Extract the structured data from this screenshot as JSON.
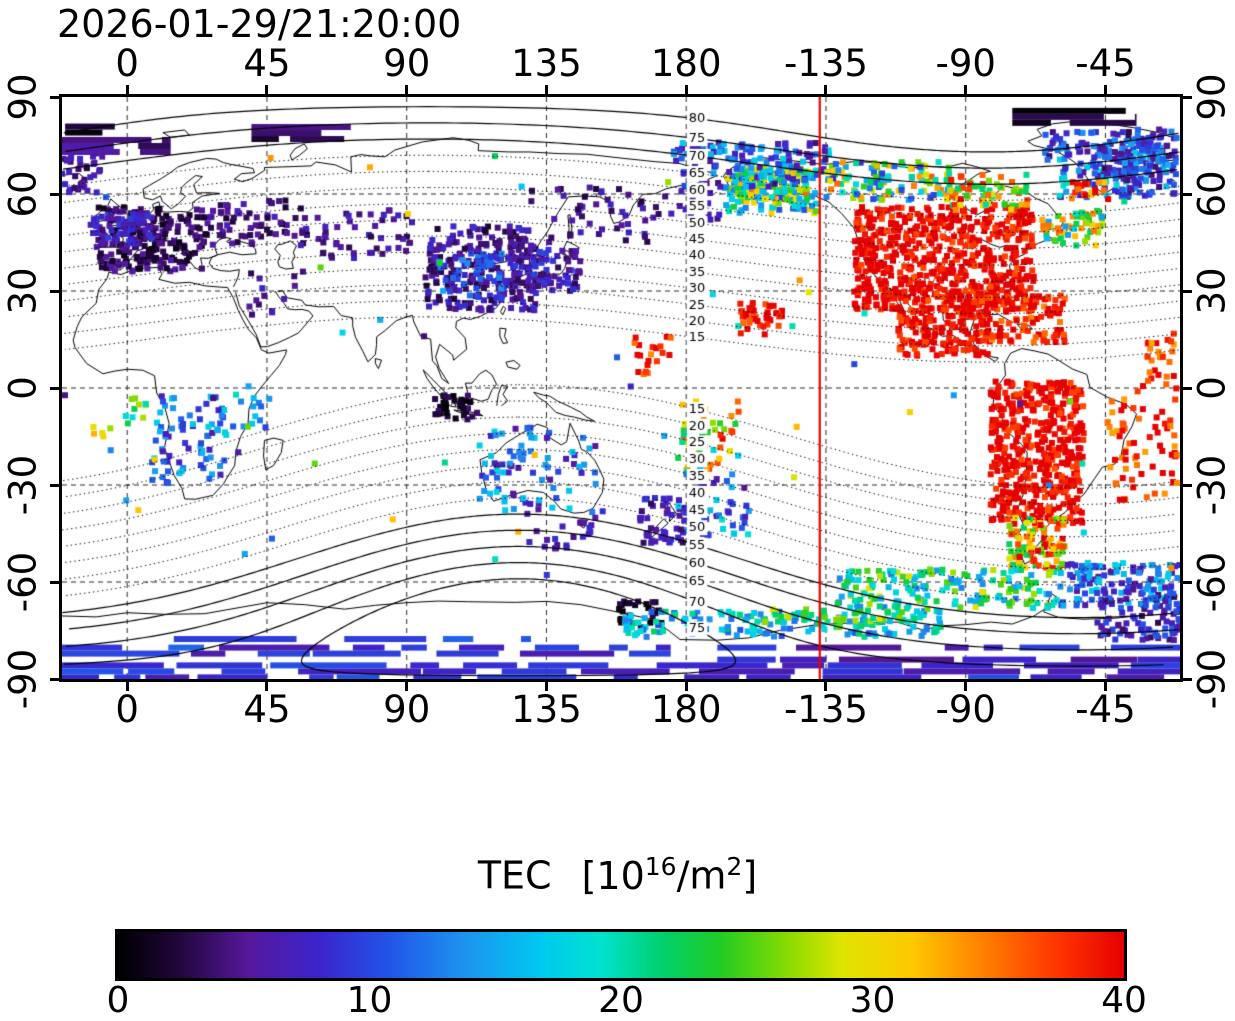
{
  "title": "2026-01-29/21:20:00",
  "axes": {
    "x_ticks": [
      0,
      45,
      90,
      135,
      180,
      -135,
      -90,
      -45
    ],
    "y_ticks": [
      90,
      60,
      30,
      0,
      -30,
      -60,
      -90
    ],
    "lon_range": [
      -21,
      339
    ],
    "lat_range": [
      -90,
      90
    ],
    "grid_lat_lines": [
      -60,
      -30,
      0,
      30,
      60
    ]
  },
  "colors": {
    "noon_line": "#ee0000",
    "coast": "#000000",
    "grid": "#2a2a2a",
    "contour": "#000000",
    "frame": "#000000",
    "background": "#ffffff"
  },
  "colorbar": {
    "title_parts": {
      "word": "TEC",
      "open": "[10",
      "sup1": "16",
      "mid": "/m",
      "sup2": "2",
      "close": "]"
    },
    "ticks": [
      0,
      10,
      20,
      30,
      40
    ],
    "range": [
      0,
      40
    ],
    "gradient_stops": [
      [
        0,
        "#000000"
      ],
      [
        0.06,
        "#20063b"
      ],
      [
        0.13,
        "#56189c"
      ],
      [
        0.2,
        "#3b24cc"
      ],
      [
        0.27,
        "#2155e8"
      ],
      [
        0.34,
        "#1e90ee"
      ],
      [
        0.42,
        "#00c8f0"
      ],
      [
        0.48,
        "#00e2cf"
      ],
      [
        0.54,
        "#00d06e"
      ],
      [
        0.6,
        "#22cc22"
      ],
      [
        0.67,
        "#8fdc00"
      ],
      [
        0.72,
        "#e0e400"
      ],
      [
        0.79,
        "#ffc800"
      ],
      [
        0.86,
        "#ff8000"
      ],
      [
        0.93,
        "#ff3800"
      ],
      [
        1,
        "#e60000"
      ]
    ]
  },
  "chart_data": {
    "type": "heatmap",
    "projection": "equirectangular",
    "timestamp": "2026-01-29/21:20:00",
    "quantity": "TEC",
    "units": "10^16/m^2",
    "value_range": [
      0,
      40
    ],
    "noon_meridian_lon": -137,
    "magnetic_latitude_contours": {
      "interval": 5,
      "label_lon": 183.5,
      "levels_north": [
        15,
        20,
        25,
        30,
        35,
        40,
        45,
        50,
        55,
        60,
        65,
        70,
        75,
        80
      ],
      "levels_south": [
        15,
        20,
        25,
        30,
        35,
        40,
        45,
        50,
        55,
        60,
        65,
        70,
        75
      ],
      "north_pole": {
        "lat": 83,
        "lon": 277
      },
      "south_pole": {
        "lat": -74,
        "lon": 126
      }
    },
    "tec_patches": [
      {
        "name": "north-america-core",
        "lon": [
          -126,
          -68
        ],
        "lat": [
          24,
          56
        ],
        "n": 650,
        "tec": [
          36,
          45
        ]
      },
      {
        "name": "mexico-central-america",
        "lon": [
          -112,
          -82
        ],
        "lat": [
          10,
          25
        ],
        "n": 160,
        "tec": [
          36,
          44
        ]
      },
      {
        "name": "caribbean",
        "lon": [
          -85,
          -58
        ],
        "lat": [
          14,
          29
        ],
        "n": 110,
        "tec": [
          34,
          44
        ]
      },
      {
        "name": "newfoundland-mixed",
        "lon": [
          -66,
          -46
        ],
        "lat": [
          44,
          55
        ],
        "n": 60,
        "tec": [
          14,
          36
        ]
      },
      {
        "name": "alaska-transition",
        "lon": [
          -168,
          -138
        ],
        "lat": [
          54,
          68
        ],
        "n": 130,
        "tec": [
          8,
          32
        ]
      },
      {
        "name": "alaska-aurora-bright",
        "lon": [
          -164,
          -140
        ],
        "lat": [
          58,
          67
        ],
        "n": 80,
        "tec": [
          15,
          36
        ]
      },
      {
        "name": "chukchi-mixed",
        "lon": [
          176,
          226
        ],
        "lat": [
          62,
          76
        ],
        "n": 150,
        "tec": [
          4,
          18
        ]
      },
      {
        "name": "arctic-canada-mixed",
        "lon": [
          -135,
          -95
        ],
        "lat": [
          58,
          70
        ],
        "n": 110,
        "tec": [
          8,
          36
        ]
      },
      {
        "name": "hudson-north-red",
        "lon": [
          -95,
          -70
        ],
        "lat": [
          55,
          66
        ],
        "n": 70,
        "tec": [
          20,
          40
        ]
      },
      {
        "name": "greenland-coast",
        "lon": [
          -60,
          -30
        ],
        "lat": [
          59,
          76
        ],
        "n": 90,
        "tec": [
          4,
          20
        ]
      },
      {
        "name": "greenland-red-specks",
        "lon": [
          -56,
          -44
        ],
        "lat": [
          58,
          64
        ],
        "n": 20,
        "tec": [
          30,
          42
        ]
      },
      {
        "name": "north-atlantic-corner",
        "lon": [
          -42,
          -22
        ],
        "lat": [
          60,
          78
        ],
        "n": 90,
        "tec": [
          3,
          16
        ]
      },
      {
        "name": "arctic-corner-mixed",
        "lon": [
          -65,
          -22
        ],
        "lat": [
          66,
          80
        ],
        "n": 110,
        "tec": [
          3,
          16
        ]
      },
      {
        "name": "iceland-sparse",
        "lon": [
          -21,
          -8
        ],
        "lat": [
          60,
          74
        ],
        "n": 40,
        "tec": [
          2,
          8
        ]
      },
      {
        "name": "south-america",
        "lon": [
          -82,
          -52
        ],
        "lat": [
          -42,
          2
        ],
        "n": 480,
        "tec": [
          36,
          45
        ]
      },
      {
        "name": "patagonia-mixed",
        "lon": [
          -76,
          -58
        ],
        "lat": [
          -56,
          -40
        ],
        "n": 100,
        "tec": [
          22,
          42
        ]
      },
      {
        "name": "south-atlantic-edge",
        "lon": [
          -45,
          -22
        ],
        "lat": [
          -35,
          2
        ],
        "n": 70,
        "tec": [
          33,
          44
        ]
      },
      {
        "name": "equatorial-atlantic-edge",
        "lon": [
          -32,
          -22
        ],
        "lat": [
          2,
          18
        ],
        "n": 25,
        "tec": [
          32,
          42
        ]
      },
      {
        "name": "europe-dark",
        "lon": [
          -10,
          26
        ],
        "lat": [
          36,
          56
        ],
        "n": 220,
        "tec": [
          1,
          6
        ]
      },
      {
        "name": "europe-blue-fringe",
        "lon": [
          -12,
          8
        ],
        "lat": [
          44,
          54
        ],
        "n": 60,
        "tec": [
          5,
          10
        ]
      },
      {
        "name": "west-russia",
        "lon": [
          26,
          62
        ],
        "lat": [
          44,
          58
        ],
        "n": 70,
        "tec": [
          2,
          7
        ]
      },
      {
        "name": "central-asia",
        "lon": [
          62,
          92
        ],
        "lat": [
          40,
          55
        ],
        "n": 45,
        "tec": [
          3,
          8
        ]
      },
      {
        "name": "east-asia-dark",
        "lon": [
          96,
          132
        ],
        "lat": [
          24,
          50
        ],
        "n": 260,
        "tec": [
          2,
          9
        ]
      },
      {
        "name": "china-cyan-bits",
        "lon": [
          100,
          122
        ],
        "lat": [
          28,
          42
        ],
        "n": 45,
        "tec": [
          8,
          15
        ]
      },
      {
        "name": "japan-korea",
        "lon": [
          124,
          146
        ],
        "lat": [
          30,
          43
        ],
        "n": 75,
        "tec": [
          3,
          10
        ]
      },
      {
        "name": "ne-asia-sparse",
        "lon": [
          130,
          168
        ],
        "lat": [
          45,
          62
        ],
        "n": 45,
        "tec": [
          2,
          8
        ]
      },
      {
        "name": "middle-east-sparse",
        "lon": [
          38,
          58
        ],
        "lat": [
          22,
          36
        ],
        "n": 14,
        "tec": [
          3,
          8
        ]
      },
      {
        "name": "pacific-equator-red",
        "lon": [
          163,
          176
        ],
        "lat": [
          4,
          16
        ],
        "n": 20,
        "tec": [
          33,
          42
        ]
      },
      {
        "name": "hawaii-red",
        "lon": [
          -163,
          -149
        ],
        "lat": [
          16,
          27
        ],
        "n": 40,
        "tec": [
          35,
          44
        ]
      },
      {
        "name": "dateline-warm",
        "lon": [
          177,
          197
        ],
        "lat": [
          -26,
          -4
        ],
        "n": 50,
        "tec": [
          14,
          40
        ]
      },
      {
        "name": "dateline-cool",
        "lon": [
          179,
          201
        ],
        "lat": [
          -46,
          -26
        ],
        "n": 45,
        "tec": [
          5,
          20
        ]
      },
      {
        "name": "indonesia-dark",
        "lon": [
          99,
          113
        ],
        "lat": [
          -10,
          -2
        ],
        "n": 35,
        "tec": [
          0,
          4
        ]
      },
      {
        "name": "australia-scatter",
        "lon": [
          113,
          154
        ],
        "lat": [
          -39,
          -12
        ],
        "n": 85,
        "tec": [
          5,
          18
        ]
      },
      {
        "name": "south-of-australia",
        "lon": [
          128,
          152
        ],
        "lat": [
          -50,
          -40
        ],
        "n": 20,
        "tec": [
          4,
          9
        ]
      },
      {
        "name": "new-zealand-blue",
        "lon": [
          165,
          180
        ],
        "lat": [
          -48,
          -34
        ],
        "n": 45,
        "tec": [
          3,
          9
        ]
      },
      {
        "name": "africa-south-scatter",
        "lon": [
          8,
          32
        ],
        "lat": [
          -30,
          -2
        ],
        "n": 75,
        "tec": [
          6,
          18
        ]
      },
      {
        "name": "gulf-of-guinea-warm",
        "lon": [
          -2,
          9
        ],
        "lat": [
          -11,
          -3
        ],
        "n": 10,
        "tec": [
          18,
          28
        ]
      },
      {
        "name": "angola-orange-specks",
        "lon": [
          -11,
          -5
        ],
        "lat": [
          -15,
          -9
        ],
        "n": 5,
        "tec": [
          27,
          33
        ]
      },
      {
        "name": "east-africa-green",
        "lon": [
          33,
          47
        ],
        "lat": [
          -13,
          1
        ],
        "n": 14,
        "tec": [
          9,
          20
        ]
      },
      {
        "name": "bering-sparse",
        "lon": [
          168,
          192
        ],
        "lat": [
          52,
          62
        ],
        "n": 16,
        "tec": [
          3,
          8
        ]
      },
      {
        "name": "southern-band-warm",
        "lon": [
          -132,
          -60
        ],
        "lat": [
          -68,
          -56
        ],
        "n": 170,
        "tec": [
          12,
          30
        ]
      },
      {
        "name": "southern-band-cool",
        "lon": [
          -60,
          -21
        ],
        "lat": [
          -68,
          -54
        ],
        "n": 130,
        "tec": [
          5,
          18
        ]
      },
      {
        "name": "bottom-right-blue",
        "lon": [
          -48,
          -21
        ],
        "lat": [
          -78,
          -62
        ],
        "n": 90,
        "tec": [
          3,
          12
        ]
      },
      {
        "name": "ross-sea-dark",
        "lon": [
          158,
          173
        ],
        "lat": [
          -74,
          -66
        ],
        "n": 28,
        "tec": [
          0,
          3
        ]
      },
      {
        "name": "antarctic-cyan-band",
        "lon": [
          160,
          262
        ],
        "lat": [
          -77,
          -69
        ],
        "n": 160,
        "tec": [
          10,
          22
        ]
      },
      {
        "name": "antarctic-yellow-bits",
        "lon": [
          205,
          258
        ],
        "lat": [
          -74,
          -68
        ],
        "n": 40,
        "tec": [
          20,
          30
        ]
      },
      {
        "name": "stray-singles",
        "lon": [
          -21,
          339
        ],
        "lat": [
          -60,
          76
        ],
        "n": 55,
        "tec": [
          2,
          34
        ]
      }
    ],
    "tec_bands": [
      {
        "name": "antarctic-stripe-1",
        "lon": [
          -21,
          339
        ],
        "lat": [
          -89.5,
          -84
        ],
        "tec": [
          6,
          11
        ]
      },
      {
        "name": "antarctic-stripe-2",
        "lon": [
          -21,
          175
        ],
        "lat": [
          -84,
          -79.5
        ],
        "tec": [
          6,
          12
        ]
      },
      {
        "name": "antarctic-stripe-3",
        "lon": [
          190,
          339
        ],
        "lat": [
          -84,
          -79.5
        ],
        "tec": [
          5,
          10
        ]
      },
      {
        "name": "antarctic-stripe-4",
        "lon": [
          15,
          130
        ],
        "lat": [
          -79.5,
          -76
        ],
        "tec": [
          7,
          12
        ]
      },
      {
        "name": "arctic-stripe-left",
        "lon": [
          -21,
          14
        ],
        "lat": [
          73,
          77
        ],
        "tec": [
          2,
          6
        ]
      },
      {
        "name": "arctic-dark-top-left",
        "lon": [
          -20,
          -4
        ],
        "lat": [
          79,
          82
        ],
        "tec": [
          0,
          3
        ]
      },
      {
        "name": "arctic-stripe-mid",
        "lon": [
          40,
          72
        ],
        "lat": [
          77,
          81
        ],
        "tec": [
          1,
          5
        ]
      },
      {
        "name": "arctic-dark-top-right",
        "lon": [
          285,
          325
        ],
        "lat": [
          82,
          86
        ],
        "tec": [
          0,
          4
        ]
      }
    ]
  }
}
